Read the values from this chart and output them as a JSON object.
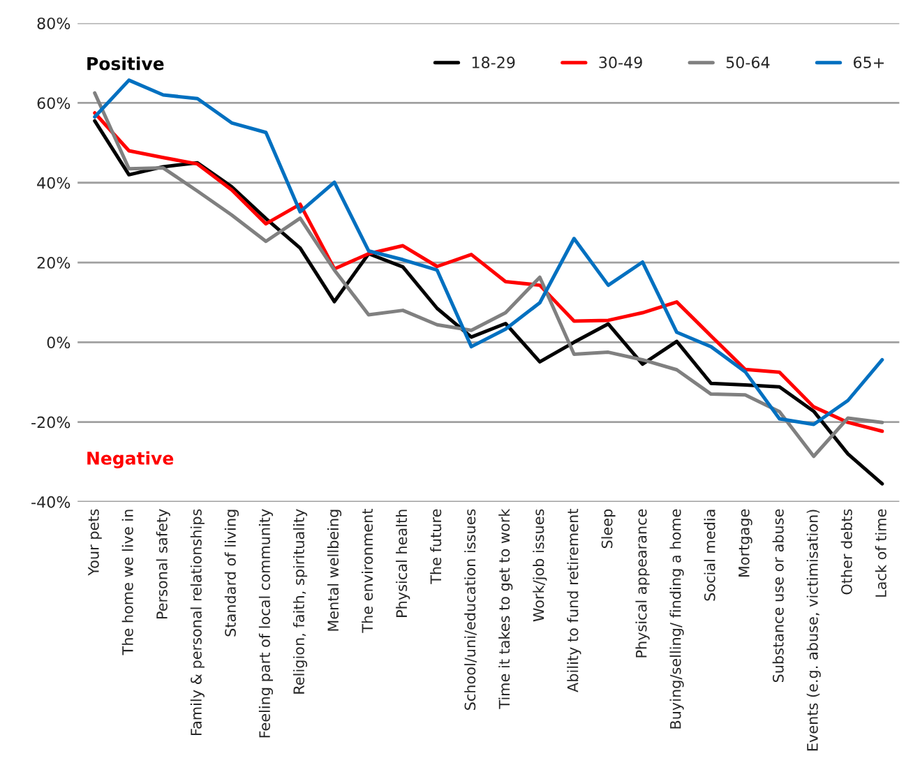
{
  "chart_data": {
    "type": "line",
    "categories": [
      "Your pets",
      "The home we live in",
      "Personal safety",
      "Family & personal relationships",
      "Standard of living",
      "Feeling part of local community",
      "Religion, faith, spirituality",
      "Mental wellbeing",
      "The environment",
      "Physical health",
      "The future",
      "School/uni/education issues",
      "Time it takes to get to work",
      "Work/job issues",
      "Ability to fund retirement",
      "Sleep",
      "Physical appearance",
      "Buying/selling/ finding a home",
      "Social media",
      "Mortgage",
      "Substance use or abuse",
      "Events (e.g. abuse, victimisation)",
      "Other debts",
      "Lack of time"
    ],
    "series": [
      {
        "name": "18-29",
        "color": "#000000",
        "values": [
          55.5,
          42,
          44,
          45,
          39,
          31,
          23.6,
          10.2,
          22.2,
          18.9,
          8.5,
          1.3,
          4.7,
          -4.9,
          0,
          4.6,
          -5.5,
          0.2,
          -10.3,
          -10.7,
          -11.2,
          -17.3,
          -28,
          -35.5
        ]
      },
      {
        "name": "30-49",
        "color": "#ff0000",
        "values": [
          57.5,
          48,
          46.3,
          44.7,
          38.2,
          29.7,
          34.6,
          18.4,
          22.2,
          24.2,
          19,
          22,
          15.2,
          14.3,
          5.3,
          5.5,
          7.4,
          10.1,
          1.6,
          -6.8,
          -7.5,
          -16.2,
          -20.1,
          -22.3
        ]
      },
      {
        "name": "50-64",
        "color": "#808080",
        "values": [
          62.5,
          43.5,
          43.7,
          37.9,
          31.9,
          25.3,
          31.1,
          18.1,
          6.9,
          8,
          4.4,
          3,
          7.4,
          16.3,
          -3,
          -2.5,
          -4.4,
          -6.9,
          -13,
          -13.2,
          -17.4,
          -28.6,
          -19,
          -20.1
        ]
      },
      {
        "name": "65+",
        "color": "#0070c0",
        "values": [
          56.5,
          65.7,
          62,
          61.1,
          55,
          52.6,
          32.7,
          40.1,
          22.9,
          20.7,
          18.1,
          -1.1,
          3.3,
          9.9,
          26,
          14.3,
          20.1,
          2.5,
          -1.1,
          -7.4,
          -19.2,
          -20.6,
          -14.6,
          -4.4
        ]
      }
    ],
    "ylim": [
      -40,
      80
    ],
    "yticks": [
      {
        "value": -40,
        "label": "-40%"
      },
      {
        "value": -20,
        "label": "-20%"
      },
      {
        "value": 0,
        "label": "0%"
      },
      {
        "value": 20,
        "label": "20%"
      },
      {
        "value": 40,
        "label": "40%"
      },
      {
        "value": 60,
        "label": "60%"
      },
      {
        "value": 80,
        "label": "80%"
      }
    ],
    "grid": "y",
    "legend": "top right",
    "annotations": [
      "Positive",
      "Negative"
    ]
  }
}
